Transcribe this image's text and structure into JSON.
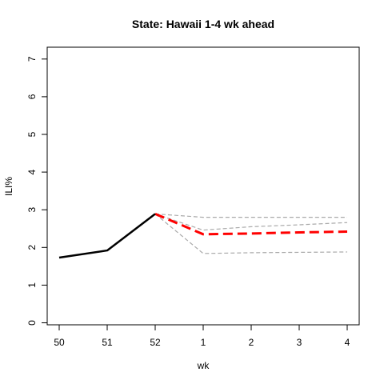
{
  "chart_data": {
    "type": "line",
    "title": "State: Hawaii 1-4 wk ahead",
    "xlabel": "wk",
    "ylabel": "ILI%",
    "x_ticks": [
      "50",
      "51",
      "52",
      "1",
      "2",
      "3",
      "4"
    ],
    "y_ticks": [
      0,
      1,
      2,
      3,
      4,
      5,
      6,
      7
    ],
    "ylim": [
      0,
      7
    ],
    "grid": false,
    "colors": {
      "observed": "#000000",
      "forecast": "#ff0000",
      "interval": "#aaaaaa"
    },
    "series": [
      {
        "style": "solid",
        "x": [
          "50",
          "51",
          "52"
        ],
        "values": [
          1.73,
          1.92,
          2.89
        ]
      },
      {
        "style": "dashed-bold",
        "x": [
          "52",
          "1",
          "2",
          "3",
          "4"
        ],
        "values": [
          2.89,
          2.35,
          2.37,
          2.4,
          2.42
        ]
      },
      {
        "style": "dashed-thin",
        "x": [
          "52",
          "1",
          "2",
          "3",
          "4"
        ],
        "values": [
          2.89,
          2.8,
          2.8,
          2.8,
          2.8
        ]
      },
      {
        "style": "dashed-thin",
        "x": [
          "52",
          "1",
          "2",
          "3",
          "4"
        ],
        "values": [
          2.89,
          2.46,
          2.55,
          2.6,
          2.66
        ]
      },
      {
        "style": "dashed-thin",
        "x": [
          "52",
          "1",
          "2",
          "3",
          "4"
        ],
        "values": [
          2.89,
          1.84,
          1.86,
          1.87,
          1.88
        ]
      }
    ]
  }
}
